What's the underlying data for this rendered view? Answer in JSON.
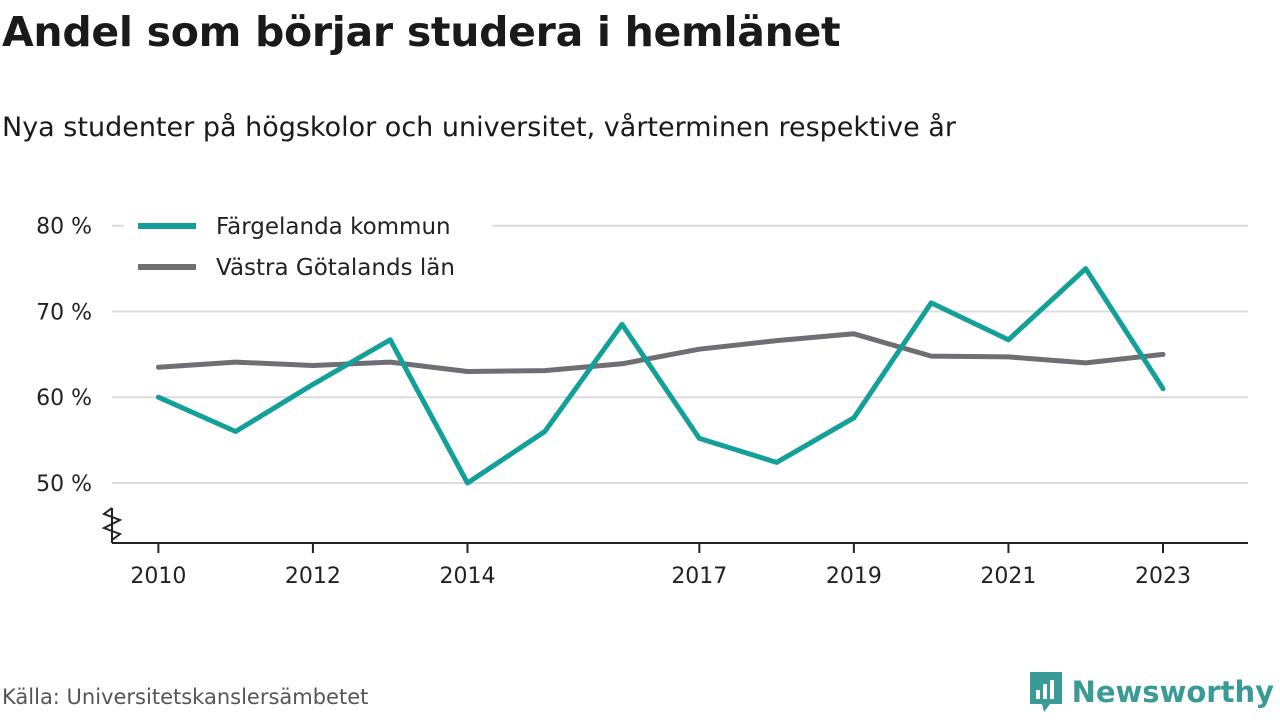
{
  "title": "Andel som börjar studera i hemlänet",
  "subtitle": "Nya studenter på högskolor och universitet, vårterminen respektive år",
  "source": "Källa: Universitetskanslersämbetet",
  "brand": "Newsworthy",
  "colors": {
    "series1": "#13a098",
    "series2": "#6f6e74",
    "grid": "#dcdcdc",
    "axis": "#222222",
    "brand": "#3a9a95"
  },
  "chart_data": {
    "type": "line",
    "x": [
      2010,
      2011,
      2012,
      2013,
      2014,
      2015,
      2016,
      2017,
      2018,
      2019,
      2020,
      2021,
      2022,
      2023
    ],
    "x_tick_values": [
      2010,
      2012,
      2014,
      2017,
      2019,
      2021,
      2023
    ],
    "x_tick_labels": [
      "2010",
      "2012",
      "2014",
      "2017",
      "2019",
      "2021",
      "2023"
    ],
    "y_tick_values": [
      50,
      60,
      70,
      80
    ],
    "y_tick_labels": [
      "50 %",
      "60 %",
      "70 %",
      "80 %"
    ],
    "ylim": [
      43,
      83
    ],
    "axis_break": true,
    "grid": true,
    "legend_position": "top-left",
    "series": [
      {
        "name": "Färgelanda kommun",
        "values": [
          60.0,
          56.0,
          61.5,
          66.7,
          50.0,
          56.0,
          68.5,
          55.2,
          52.4,
          57.6,
          71.0,
          66.7,
          75.0,
          61.0
        ]
      },
      {
        "name": "Västra Götalands län",
        "values": [
          63.5,
          64.1,
          63.7,
          64.1,
          63.0,
          63.1,
          63.9,
          65.6,
          66.6,
          67.4,
          64.8,
          64.7,
          64.0,
          65.0
        ]
      }
    ]
  }
}
